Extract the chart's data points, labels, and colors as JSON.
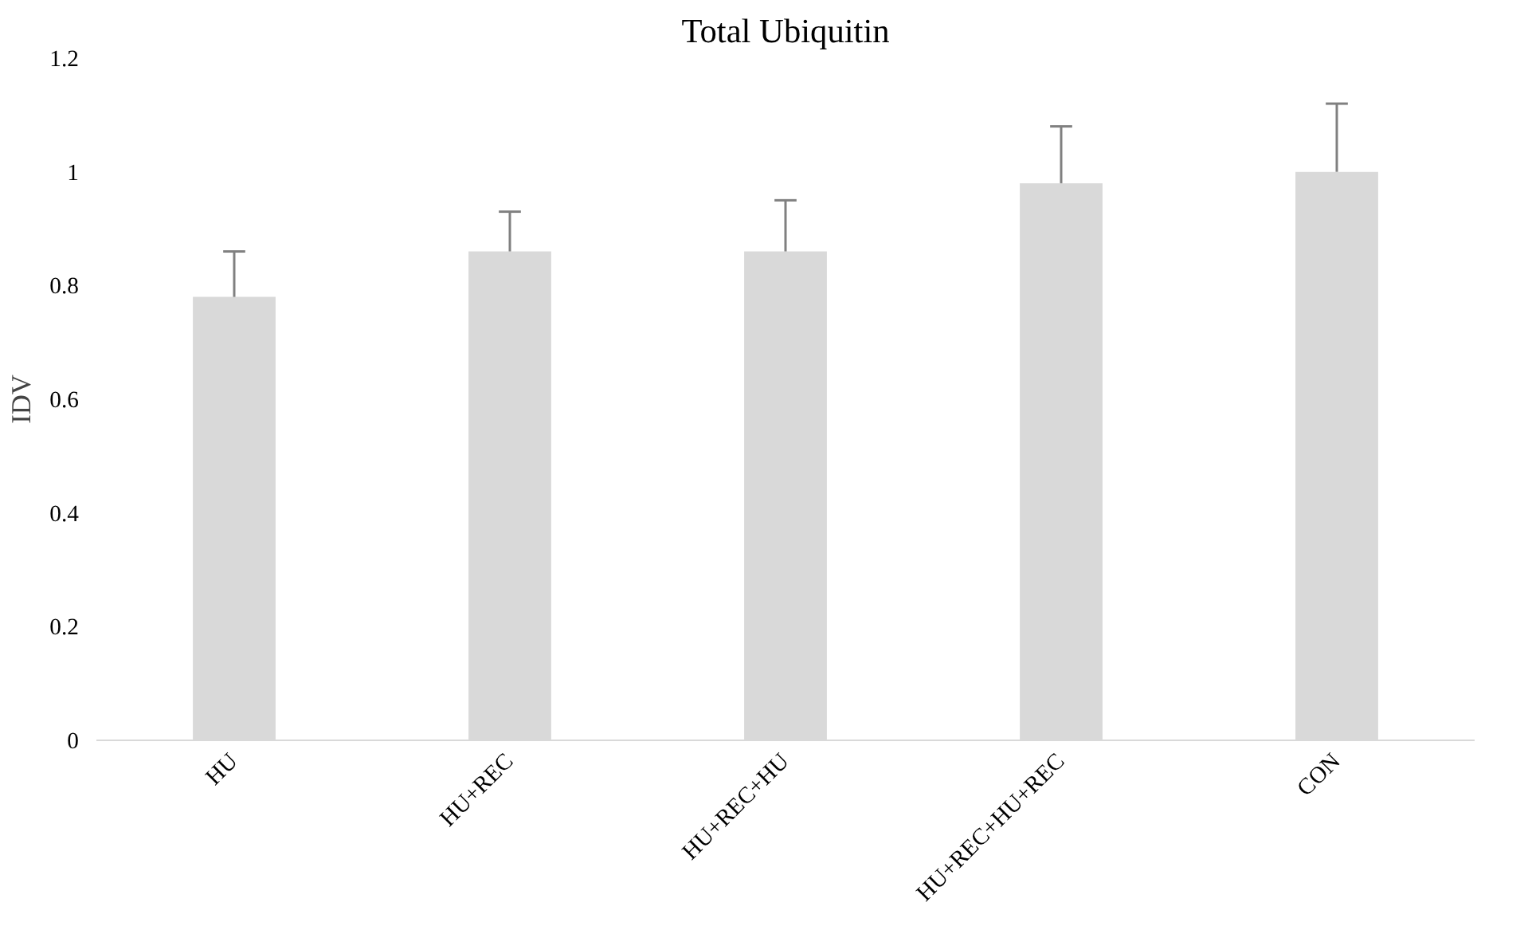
{
  "chart_data": {
    "type": "bar",
    "title": "Total Ubiquitin",
    "ylabel": "IDV",
    "categories": [
      "HU",
      "HU+REC",
      "HU+REC+HU",
      "HU+REC+HU+REC",
      "CON"
    ],
    "values": [
      0.78,
      0.86,
      0.86,
      0.98,
      1.0
    ],
    "errors": [
      [
        0.78,
        0.86
      ],
      [
        0.86,
        0.93
      ],
      [
        0.86,
        0.95
      ],
      [
        0.98,
        1.08
      ],
      [
        1.0,
        1.12
      ]
    ],
    "color": "#d9d9d9",
    "ylim": [
      0,
      1.2
    ],
    "yticks": [
      0,
      0.2,
      0.4,
      0.6,
      0.8,
      1,
      1.2
    ],
    "grid": false
  }
}
